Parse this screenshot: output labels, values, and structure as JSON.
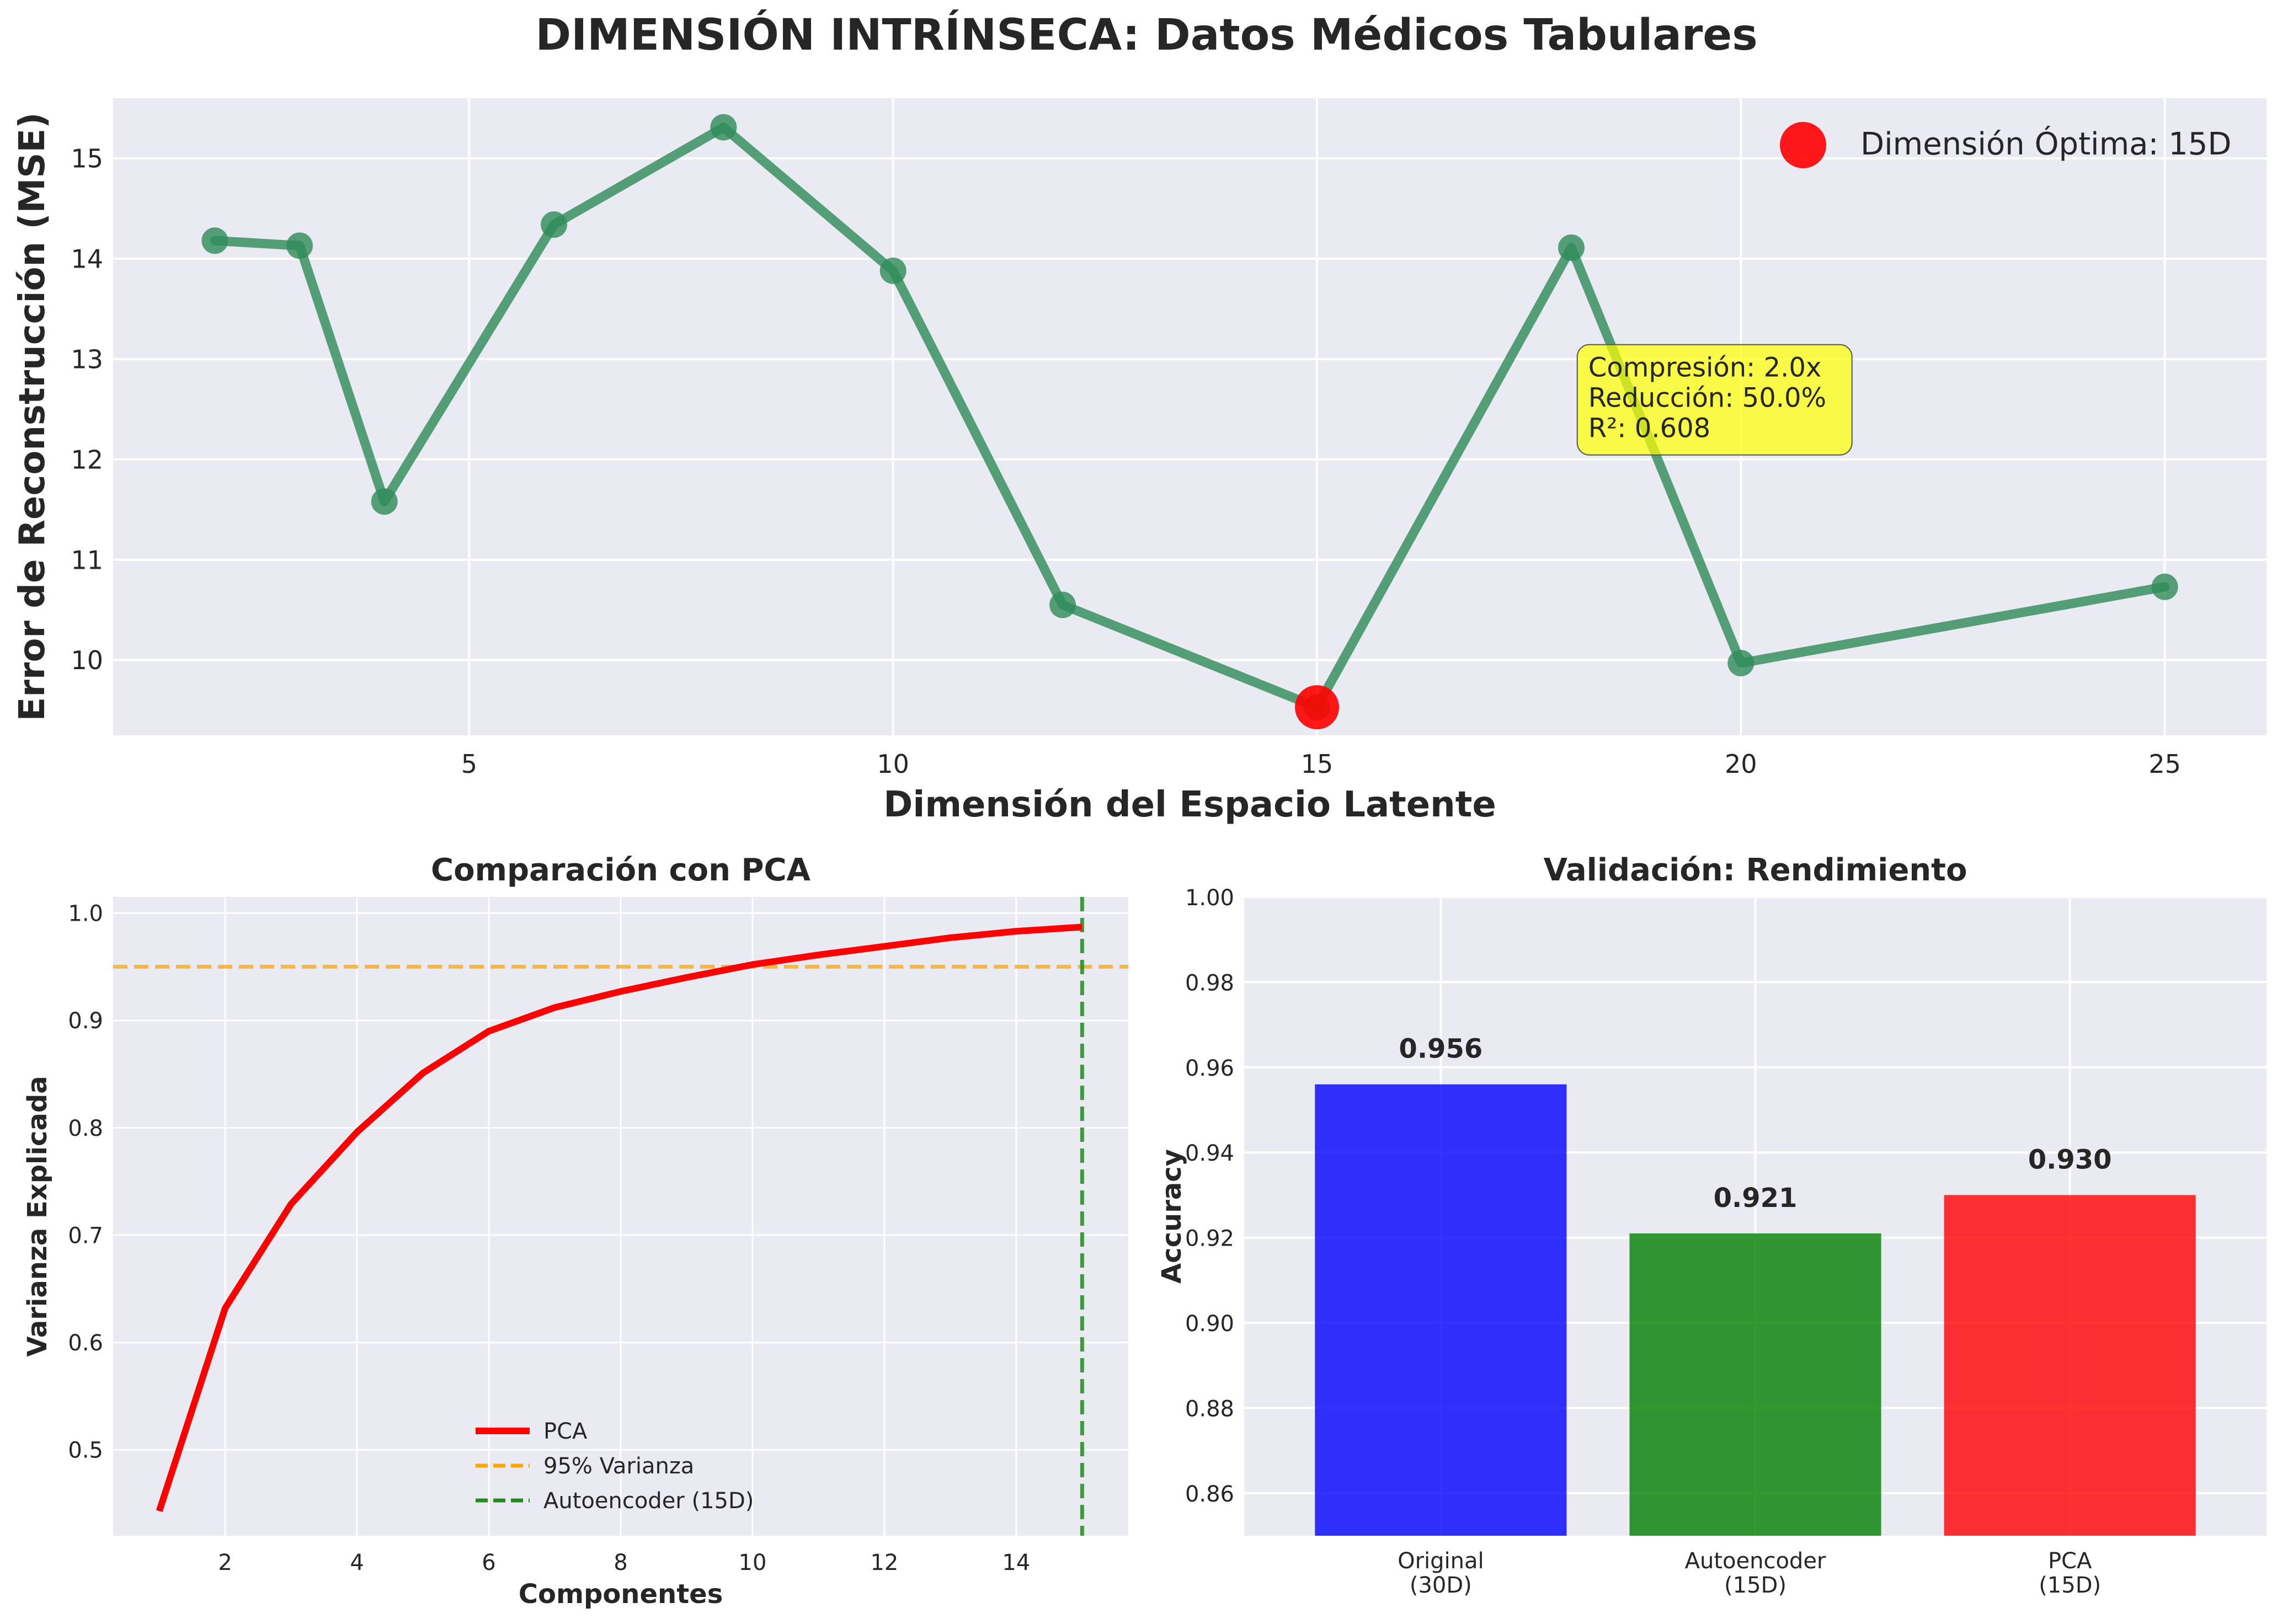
{
  "suptitle": "DIMENSIÓN INTRÍNSECA: Datos Médicos Tabulares",
  "colors": {
    "plot_bg": "#eaeaf2",
    "grid": "#ffffff",
    "ae_line": "#2e8b57",
    "optimal": "#ff0000",
    "pca_line": "#ff0000",
    "threshold": "#ffa500",
    "ae_vline": "#228b22",
    "annotation_bg": "#ffff00",
    "bar_original": "#0000ff",
    "bar_autoencoder": "#008000",
    "bar_pca": "#ff0000"
  },
  "chart_data": [
    {
      "type": "line",
      "xlabel": "Dimensión del Espacio Latente",
      "ylabel": "Error de Reconstrucción (MSE)",
      "xlim": [
        0.8,
        26.2
      ],
      "ylim": [
        9.25,
        15.6
      ],
      "xticks": [
        5,
        10,
        15,
        20,
        25
      ],
      "yticks": [
        10,
        11,
        12,
        13,
        14,
        15
      ],
      "grid": true,
      "series": [
        {
          "x": [
            2,
            3,
            4,
            6,
            8,
            10,
            12,
            15,
            18,
            20,
            25
          ],
          "y": [
            14.18,
            14.13,
            11.58,
            14.34,
            15.31,
            13.88,
            10.55,
            9.53,
            14.11,
            9.97,
            10.73
          ]
        }
      ],
      "highlight": {
        "x": 15,
        "y": 9.53,
        "legend_label": "Dimensión Óptima: 15D"
      },
      "legend_position": "upper right",
      "annotation": {
        "lines": [
          "Compresión: 2.0x",
          "Reducción: 50.0%",
          "R²: 0.608"
        ],
        "x": 18.2,
        "y": 13.1
      }
    },
    {
      "type": "line",
      "title": "Comparación con PCA",
      "xlabel": "Componentes",
      "ylabel": "Varianza Explicada",
      "xlim": [
        0.3,
        15.7
      ],
      "ylim": [
        0.42,
        1.015
      ],
      "xticks": [
        2,
        4,
        6,
        8,
        10,
        12,
        14
      ],
      "yticks": [
        0.5,
        0.6,
        0.7,
        0.8,
        0.9,
        1.0
      ],
      "grid": true,
      "series": [
        {
          "name": "PCA",
          "x": [
            1,
            2,
            3,
            4,
            5,
            6,
            7,
            8,
            9,
            10,
            11,
            12,
            13,
            14,
            15
          ],
          "y": [
            0.443,
            0.632,
            0.729,
            0.796,
            0.851,
            0.89,
            0.912,
            0.927,
            0.94,
            0.952,
            0.961,
            0.969,
            0.977,
            0.983,
            0.987
          ]
        }
      ],
      "hlines": [
        {
          "name": "95% Varianza",
          "y": 0.95
        }
      ],
      "vlines": [
        {
          "name": "Autoencoder (15D)",
          "x": 15
        }
      ],
      "legend_position": "lower center"
    },
    {
      "type": "bar",
      "title": "Validación: Rendimiento",
      "ylabel": "Accuracy",
      "categories": [
        "Original\n(30D)",
        "Autoencoder\n(15D)",
        "PCA\n(15D)"
      ],
      "values": [
        0.956,
        0.921,
        0.93
      ],
      "value_labels": [
        "0.956",
        "0.921",
        "0.930"
      ],
      "ylim": [
        0.85,
        1.0
      ],
      "yticks": [
        0.86,
        0.88,
        0.9,
        0.92,
        0.94,
        0.96,
        0.98,
        1.0
      ],
      "grid": true
    }
  ]
}
